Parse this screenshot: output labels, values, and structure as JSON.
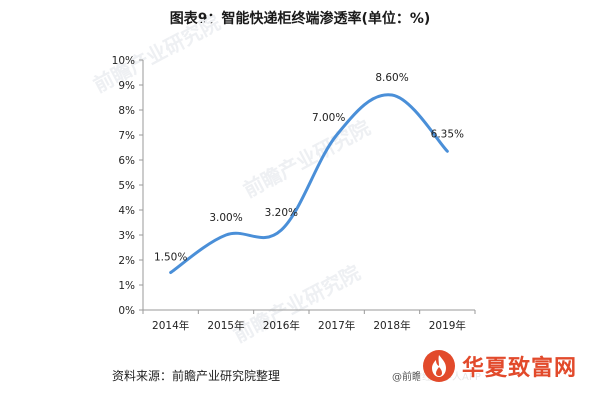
{
  "chart_data": {
    "type": "line",
    "title": "图表9：智能快递柜终端渗透率(单位：%)",
    "categories": [
      "2014年",
      "2015年",
      "2016年",
      "2017年",
      "2018年",
      "2019年"
    ],
    "series": [
      {
        "values": [
          1.5,
          3.0,
          3.2,
          7.0,
          8.6,
          6.35
        ],
        "labels": [
          "1.50%",
          "3.00%",
          "3.20%",
          "7.00%",
          "8.60%",
          "6.35%"
        ]
      }
    ],
    "ylim": [
      0,
      10
    ],
    "yticks": [
      0,
      1,
      2,
      3,
      4,
      5,
      6,
      7,
      8,
      9,
      10
    ],
    "ytick_labels": [
      "0%",
      "1%",
      "2%",
      "3%",
      "4%",
      "5%",
      "6%",
      "7%",
      "8%",
      "9%",
      "10%"
    ],
    "line_color": "#4a8fd8",
    "grid": false
  },
  "footer": {
    "source": "资料来源：前瞻产业研究院整理",
    "credit": "@前瞻经济学人APP",
    "site_name": "华夏致富网"
  },
  "watermark": {
    "text": "前瞻产业研究院"
  },
  "colors": {
    "logo_red": "#e24a2b"
  }
}
